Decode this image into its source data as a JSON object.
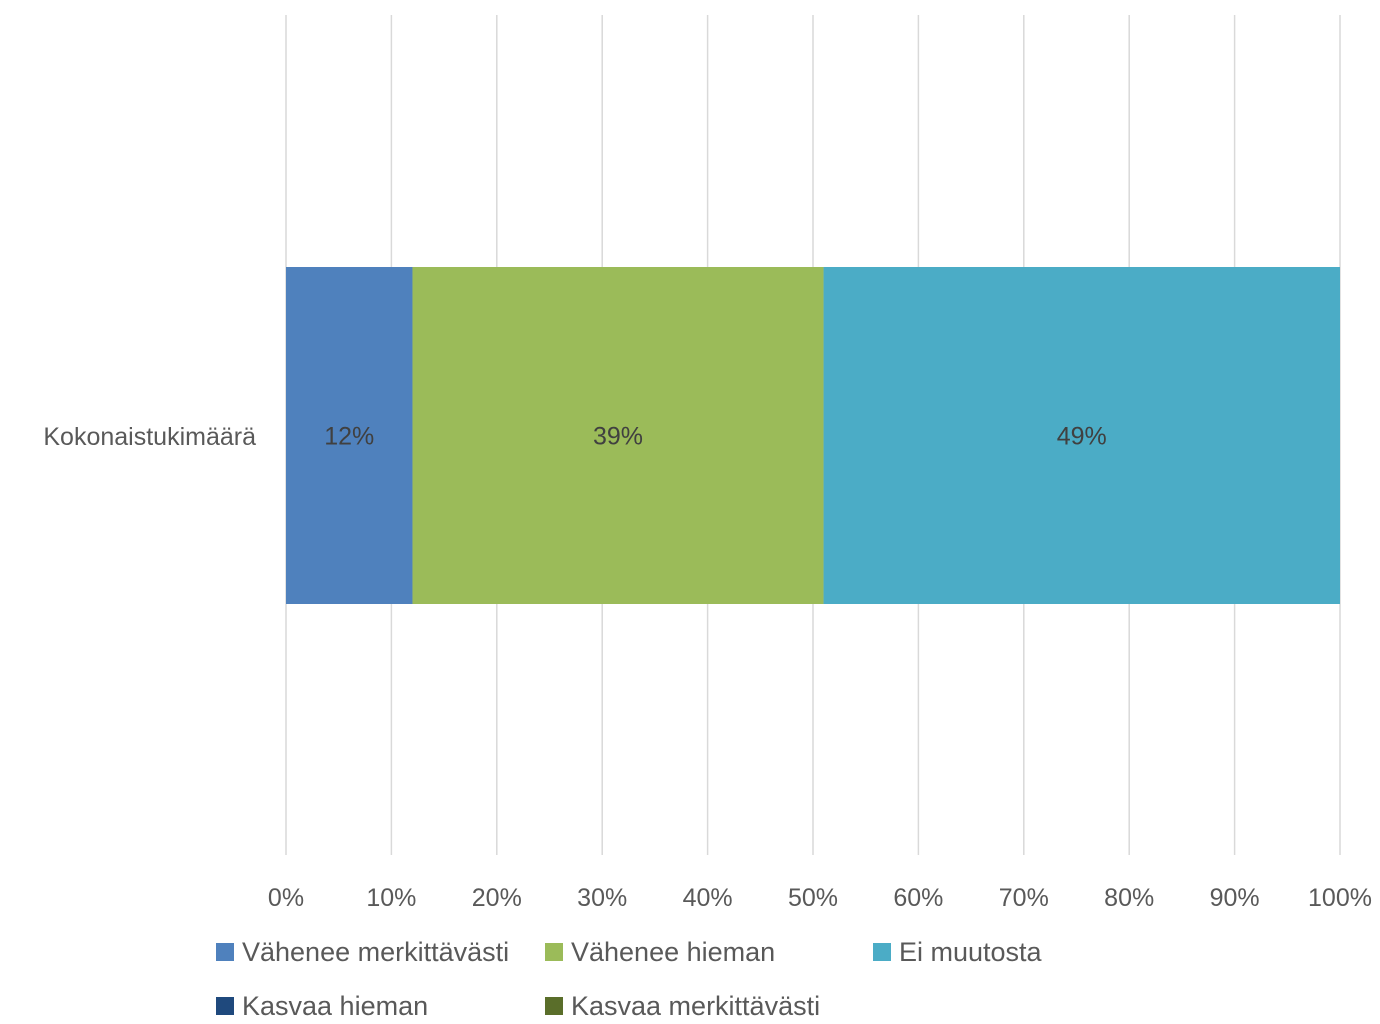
{
  "chart_data": {
    "type": "bar",
    "orientation": "horizontal",
    "stacked": true,
    "percent_stacked": true,
    "categories": [
      "Kokonaistukimäärä"
    ],
    "series": [
      {
        "name": "Vähenee merkittävästi",
        "values": [
          12
        ],
        "color": "#4f81bd",
        "label": "12%"
      },
      {
        "name": "Vähenee hieman",
        "values": [
          39
        ],
        "color": "#9bbb59",
        "label": "39%"
      },
      {
        "name": "Ei muutosta",
        "values": [
          49
        ],
        "color": "#4bacc6",
        "label": "49%"
      },
      {
        "name": "Kasvaa hieman",
        "values": [
          0
        ],
        "color": "#1f497d",
        "label": ""
      },
      {
        "name": "Kasvaa merkittävästi",
        "values": [
          0
        ],
        "color": "#5a6e2a",
        "label": ""
      }
    ],
    "xlim": [
      0,
      100
    ],
    "x_ticks": [
      0,
      10,
      20,
      30,
      40,
      50,
      60,
      70,
      80,
      90,
      100
    ],
    "x_tick_labels": [
      "0%",
      "10%",
      "20%",
      "30%",
      "40%",
      "50%",
      "60%",
      "70%",
      "80%",
      "90%",
      "100%"
    ],
    "grid": "vertical",
    "legend_position": "bottom",
    "title": "",
    "xlabel": "",
    "ylabel": ""
  }
}
